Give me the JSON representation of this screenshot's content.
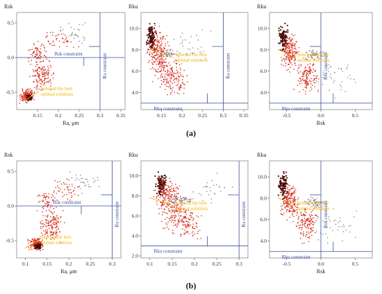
{
  "panel_labels": {
    "a": "(a)",
    "b": "(b)"
  },
  "colors": {
    "axis_box": "#8a8a8a",
    "constraint": "#3a4a9a",
    "selected": "#f0b400",
    "points_red": "#d62a1a",
    "points_dark": "#4a0c08",
    "points_gray": "#8a8a8a"
  },
  "chart_data": [
    {
      "id": "a1",
      "type": "scatter",
      "row": "a",
      "xlabel": "Ra, μm",
      "ylabel": "Rsk",
      "xticks": [
        "0.15",
        "0.2",
        "0.25",
        "0.3",
        "0.35"
      ],
      "xtick_values": [
        0.15,
        0.2,
        0.25,
        0.3,
        0.35
      ],
      "yticks": [
        "0.5",
        "0.0",
        "-0.5"
      ],
      "ytick_values": [
        0.5,
        0.0,
        -0.5
      ],
      "xlim": [
        0.1,
        0.36
      ],
      "ylim": [
        -0.75,
        0.65
      ],
      "constraints": [
        {
          "label": "Rsk constraint",
          "axis": "y",
          "value": 0.0
        },
        {
          "label": "Ra constraint",
          "axis": "x",
          "value": 0.3
        }
      ],
      "annotation": "Selected the best optimal solutions"
    },
    {
      "id": "a2",
      "type": "scatter",
      "row": "a",
      "xlabel": "",
      "ylabel": "Rku",
      "xticks": [
        "0.15",
        "0.2",
        "0.25",
        "0.3",
        "0.35"
      ],
      "xtick_values": [
        0.15,
        0.2,
        0.25,
        0.3,
        0.35
      ],
      "yticks": [
        "10.0",
        "8.0",
        "6.0",
        "4.0"
      ],
      "ytick_values": [
        10,
        8,
        6,
        4
      ],
      "xlim": [
        0.1,
        0.36
      ],
      "ylim": [
        2.4,
        11.5
      ],
      "constraints": [
        {
          "label": "Rku constraint",
          "axis": "y",
          "value": 3.0
        },
        {
          "label": "Ra constraint",
          "axis": "x",
          "value": 0.3
        }
      ],
      "annotation": "Selected the best optimal solutions"
    },
    {
      "id": "a3",
      "type": "scatter",
      "row": "a",
      "xlabel": "Rsk",
      "ylabel": "Rku",
      "xticks": [
        "-0.5",
        "0.0",
        "0.5"
      ],
      "xtick_values": [
        -0.5,
        0.0,
        0.5
      ],
      "yticks": [
        "10.0",
        "8.0",
        "6.0",
        "4.0"
      ],
      "ytick_values": [
        10,
        8,
        6,
        4
      ],
      "xlim": [
        -0.75,
        0.75
      ],
      "ylim": [
        2.4,
        11.5
      ],
      "constraints": [
        {
          "label": "Rku constraint",
          "axis": "y",
          "value": 3.0
        },
        {
          "label": "Rsk constraint",
          "axis": "x",
          "value": 0.0
        }
      ],
      "annotation": "Selected the best optimal solutions"
    },
    {
      "id": "b1",
      "type": "scatter",
      "row": "b",
      "xlabel": "Ra, μm",
      "ylabel": "Rsk",
      "xticks": [
        "0.1",
        "0.15",
        "0.2",
        "0.25",
        "0.3"
      ],
      "xtick_values": [
        0.1,
        0.15,
        0.2,
        0.25,
        0.3
      ],
      "yticks": [
        "0.5",
        "0.0",
        "-0.5"
      ],
      "ytick_values": [
        0.5,
        0.0,
        -0.5
      ],
      "xlim": [
        0.08,
        0.32
      ],
      "ylim": [
        -0.75,
        0.65
      ],
      "constraints": [
        {
          "label": "Rsk constraint",
          "axis": "y",
          "value": 0.0
        },
        {
          "label": "Ra constraint",
          "axis": "x",
          "value": 0.3
        }
      ],
      "annotation": "Selected the best optimal solutions"
    },
    {
      "id": "b2",
      "type": "scatter",
      "row": "b",
      "xlabel": "",
      "ylabel": "Rku",
      "xticks": [
        "0.1",
        "0.15",
        "0.2",
        "0.25",
        "0.3"
      ],
      "xtick_values": [
        0.1,
        0.15,
        0.2,
        0.25,
        0.3
      ],
      "yticks": [
        "10.0",
        "8.0",
        "6.0",
        "4.0",
        "2.0"
      ],
      "ytick_values": [
        10,
        8,
        6,
        4,
        2
      ],
      "xlim": [
        0.08,
        0.32
      ],
      "ylim": [
        1.8,
        11.5
      ],
      "constraints": [
        {
          "label": "Rku constraint",
          "axis": "y",
          "value": 3.0
        },
        {
          "label": "Ra constraint",
          "axis": "x",
          "value": 0.3
        }
      ],
      "annotation": "Selected the best optimal solutions"
    },
    {
      "id": "b3",
      "type": "scatter",
      "row": "b",
      "xlabel": "Rsk",
      "ylabel": "Rku",
      "xticks": [
        "-0.5",
        "0.0",
        "0.5"
      ],
      "xtick_values": [
        -0.5,
        0.0,
        0.5
      ],
      "yticks": [
        "10.0",
        "8.0",
        "6.0",
        "4.0"
      ],
      "ytick_values": [
        10,
        8,
        6,
        4
      ],
      "xlim": [
        -0.75,
        0.75
      ],
      "ylim": [
        2.4,
        11.5
      ],
      "constraints": [
        {
          "label": "Rku constraint",
          "axis": "y",
          "value": 3.0
        },
        {
          "label": "Rsk constraint",
          "axis": "x",
          "value": 0.0
        }
      ],
      "annotation": "Selected the best optimal solutions"
    }
  ]
}
